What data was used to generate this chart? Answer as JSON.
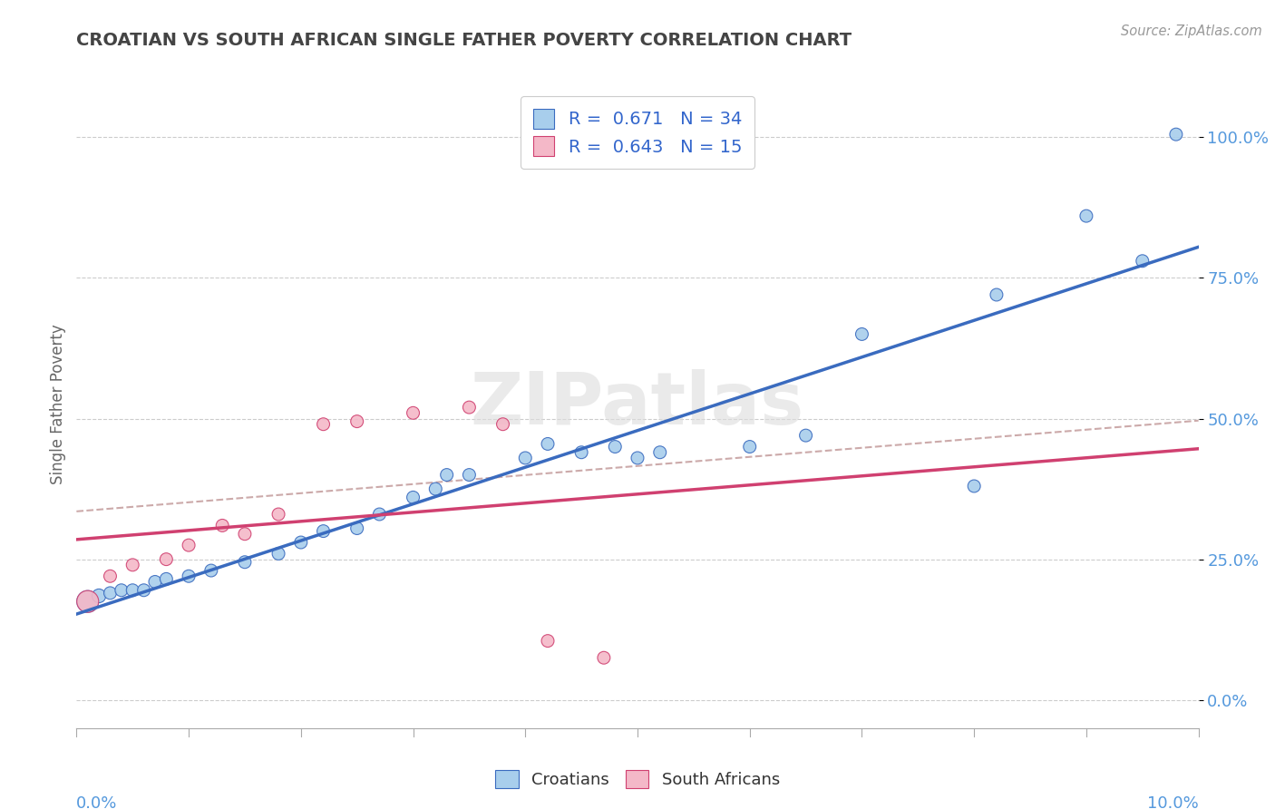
{
  "title": "CROATIAN VS SOUTH AFRICAN SINGLE FATHER POVERTY CORRELATION CHART",
  "source": "Source: ZipAtlas.com",
  "ylabel": "Single Father Poverty",
  "watermark": "ZIPatlas",
  "croatian_R": 0.671,
  "croatian_N": 34,
  "sa_R": 0.643,
  "sa_N": 15,
  "croatian_color": "#A8CEEC",
  "sa_color": "#F4B8C8",
  "croatian_line_color": "#3A6BBF",
  "sa_line_color": "#D04070",
  "dashed_color": "#CCAAAA",
  "background_color": "#FFFFFF",
  "grid_color": "#CCCCCC",
  "title_color": "#444444",
  "axis_label_color": "#5599DD",
  "legend_text_color": "#3366CC",
  "croatian_x": [
    0.001,
    0.002,
    0.003,
    0.004,
    0.005,
    0.006,
    0.007,
    0.008,
    0.01,
    0.012,
    0.015,
    0.018,
    0.02,
    0.022,
    0.025,
    0.027,
    0.03,
    0.032,
    0.033,
    0.035,
    0.04,
    0.042,
    0.045,
    0.048,
    0.05,
    0.052,
    0.06,
    0.065,
    0.07,
    0.08,
    0.082,
    0.09,
    0.095,
    0.098
  ],
  "croatian_y": [
    0.175,
    0.185,
    0.19,
    0.195,
    0.195,
    0.195,
    0.21,
    0.215,
    0.22,
    0.23,
    0.245,
    0.26,
    0.28,
    0.3,
    0.305,
    0.33,
    0.36,
    0.375,
    0.4,
    0.4,
    0.43,
    0.455,
    0.44,
    0.45,
    0.43,
    0.44,
    0.45,
    0.47,
    0.65,
    0.38,
    0.72,
    0.86,
    0.78,
    1.005
  ],
  "croatian_sizes": [
    300,
    120,
    100,
    100,
    100,
    100,
    100,
    100,
    100,
    100,
    100,
    100,
    100,
    100,
    100,
    100,
    100,
    100,
    100,
    100,
    100,
    100,
    100,
    100,
    100,
    100,
    100,
    100,
    100,
    100,
    100,
    100,
    100,
    100
  ],
  "sa_x": [
    0.001,
    0.003,
    0.005,
    0.008,
    0.01,
    0.013,
    0.015,
    0.018,
    0.022,
    0.025,
    0.03,
    0.035,
    0.038,
    0.042,
    0.047
  ],
  "sa_y": [
    0.175,
    0.22,
    0.24,
    0.25,
    0.275,
    0.31,
    0.295,
    0.33,
    0.49,
    0.495,
    0.51,
    0.52,
    0.49,
    0.105,
    0.075
  ],
  "sa_sizes": [
    300,
    100,
    100,
    100,
    100,
    100,
    100,
    100,
    100,
    100,
    100,
    100,
    100,
    100,
    100
  ],
  "xlim": [
    0.0,
    0.1
  ],
  "ylim": [
    -0.05,
    1.1
  ],
  "ytick_labels": [
    "0.0%",
    "25.0%",
    "50.0%",
    "75.0%",
    "100.0%"
  ],
  "ytick_values": [
    0.0,
    0.25,
    0.5,
    0.75,
    1.0
  ]
}
